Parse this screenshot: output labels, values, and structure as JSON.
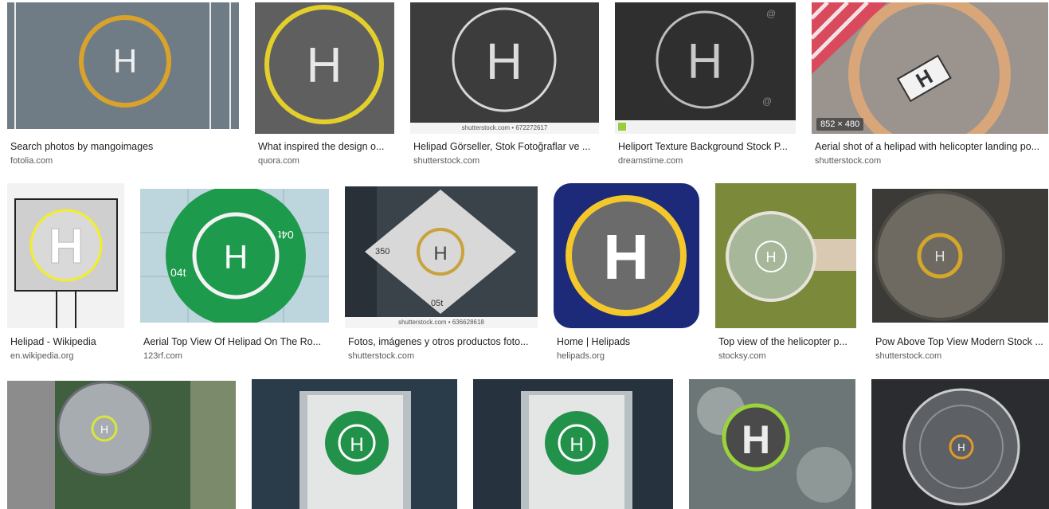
{
  "results": [
    {
      "caption": "Search photos by mangoimages",
      "source": "fotolia.com"
    },
    {
      "caption": "What inspired the design o...",
      "source": "quora.com"
    },
    {
      "caption": "Helipad Görseller, Stok Fotoğraflar ve ...",
      "source": "shutterstock.com",
      "watermark": "shutterstock.com • 672272617"
    },
    {
      "caption": "Heliport Texture Background Stock P...",
      "source": "dreamstime.com"
    },
    {
      "caption": "Aerial shot of a helipad with helicopter landing po...",
      "source": "shutterstock.com",
      "dimensions": "852 × 480"
    },
    {
      "caption": "Helipad - Wikipedia",
      "source": "en.wikipedia.org"
    },
    {
      "caption": "Aerial Top View Of Helipad On The Ro...",
      "source": "123rf.com"
    },
    {
      "caption": "Fotos, imágenes y otros productos foto...",
      "source": "shutterstock.com",
      "watermark": "shutterstock.com • 636628618"
    },
    {
      "caption": "Home | Helipads",
      "source": "helipads.org"
    },
    {
      "caption": "Top view of the helicopter p...",
      "source": "stocksy.com"
    },
    {
      "caption": "Pow Above Top View Modern Stock ...",
      "source": "shutterstock.com"
    }
  ],
  "image_text": {
    "h": "H",
    "m_04t": "04t",
    "m_350": "350",
    "m_05t": "05t"
  }
}
